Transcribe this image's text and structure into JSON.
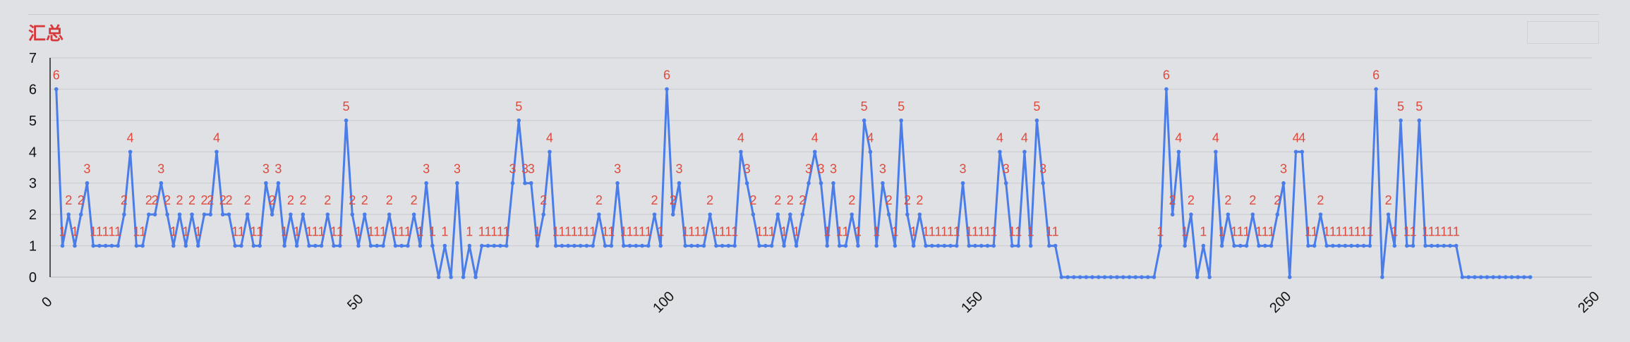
{
  "title": "汇总",
  "chart_data": {
    "type": "line",
    "title": "汇总",
    "xlabel": "",
    "ylabel": "",
    "xlim": [
      0,
      250
    ],
    "ylim": [
      0,
      7
    ],
    "x_ticks": [
      0,
      50,
      100,
      150,
      200,
      250
    ],
    "y_ticks": [
      0,
      1,
      2,
      3,
      4,
      5,
      6,
      7
    ],
    "grid": true,
    "color": "#4a7de8",
    "label_color": "#e04a3c",
    "series": [
      {
        "values": [
          6,
          1,
          2,
          1,
          2,
          3,
          1,
          1,
          1,
          1,
          1,
          2,
          4,
          1,
          1,
          2,
          2,
          3,
          2,
          1,
          2,
          1,
          2,
          1,
          2,
          2,
          4,
          2,
          2,
          1,
          1,
          2,
          1,
          1,
          3,
          2,
          3,
          1,
          2,
          1,
          2,
          1,
          1,
          1,
          2,
          1,
          1,
          5,
          2,
          1,
          2,
          1,
          1,
          1,
          2,
          1,
          1,
          1,
          2,
          1,
          3,
          1,
          0,
          1,
          0,
          3,
          0,
          1,
          0,
          1,
          1,
          1,
          1,
          1,
          3,
          5,
          3,
          3,
          1,
          2,
          4,
          1,
          1,
          1,
          1,
          1,
          1,
          1,
          2,
          1,
          1,
          3,
          1,
          1,
          1,
          1,
          1,
          2,
          1,
          6,
          2,
          3,
          1,
          1,
          1,
          1,
          2,
          1,
          1,
          1,
          1,
          4,
          3,
          2,
          1,
          1,
          1,
          2,
          1,
          2,
          1,
          2,
          3,
          4,
          3,
          1,
          3,
          1,
          1,
          2,
          1,
          5,
          4,
          1,
          3,
          2,
          1,
          5,
          2,
          1,
          2,
          1,
          1,
          1,
          1,
          1,
          1,
          3,
          1,
          1,
          1,
          1,
          1,
          4,
          3,
          1,
          1,
          4,
          1,
          5,
          3,
          1,
          1,
          0,
          0,
          0,
          0,
          0,
          0,
          0,
          0,
          0,
          0,
          0,
          0,
          0,
          0,
          0,
          0,
          1,
          6,
          2,
          4,
          1,
          2,
          0,
          1,
          0,
          4,
          1,
          2,
          1,
          1,
          1,
          2,
          1,
          1,
          1,
          2,
          3,
          0,
          4,
          4,
          1,
          1,
          2,
          1,
          1,
          1,
          1,
          1,
          1,
          1,
          1,
          6,
          0,
          2,
          1,
          5,
          1,
          1,
          5,
          1,
          1,
          1,
          1,
          1,
          1,
          0,
          0,
          0,
          0,
          0,
          0,
          0,
          0,
          0,
          0,
          0,
          0
        ]
      }
    ]
  }
}
